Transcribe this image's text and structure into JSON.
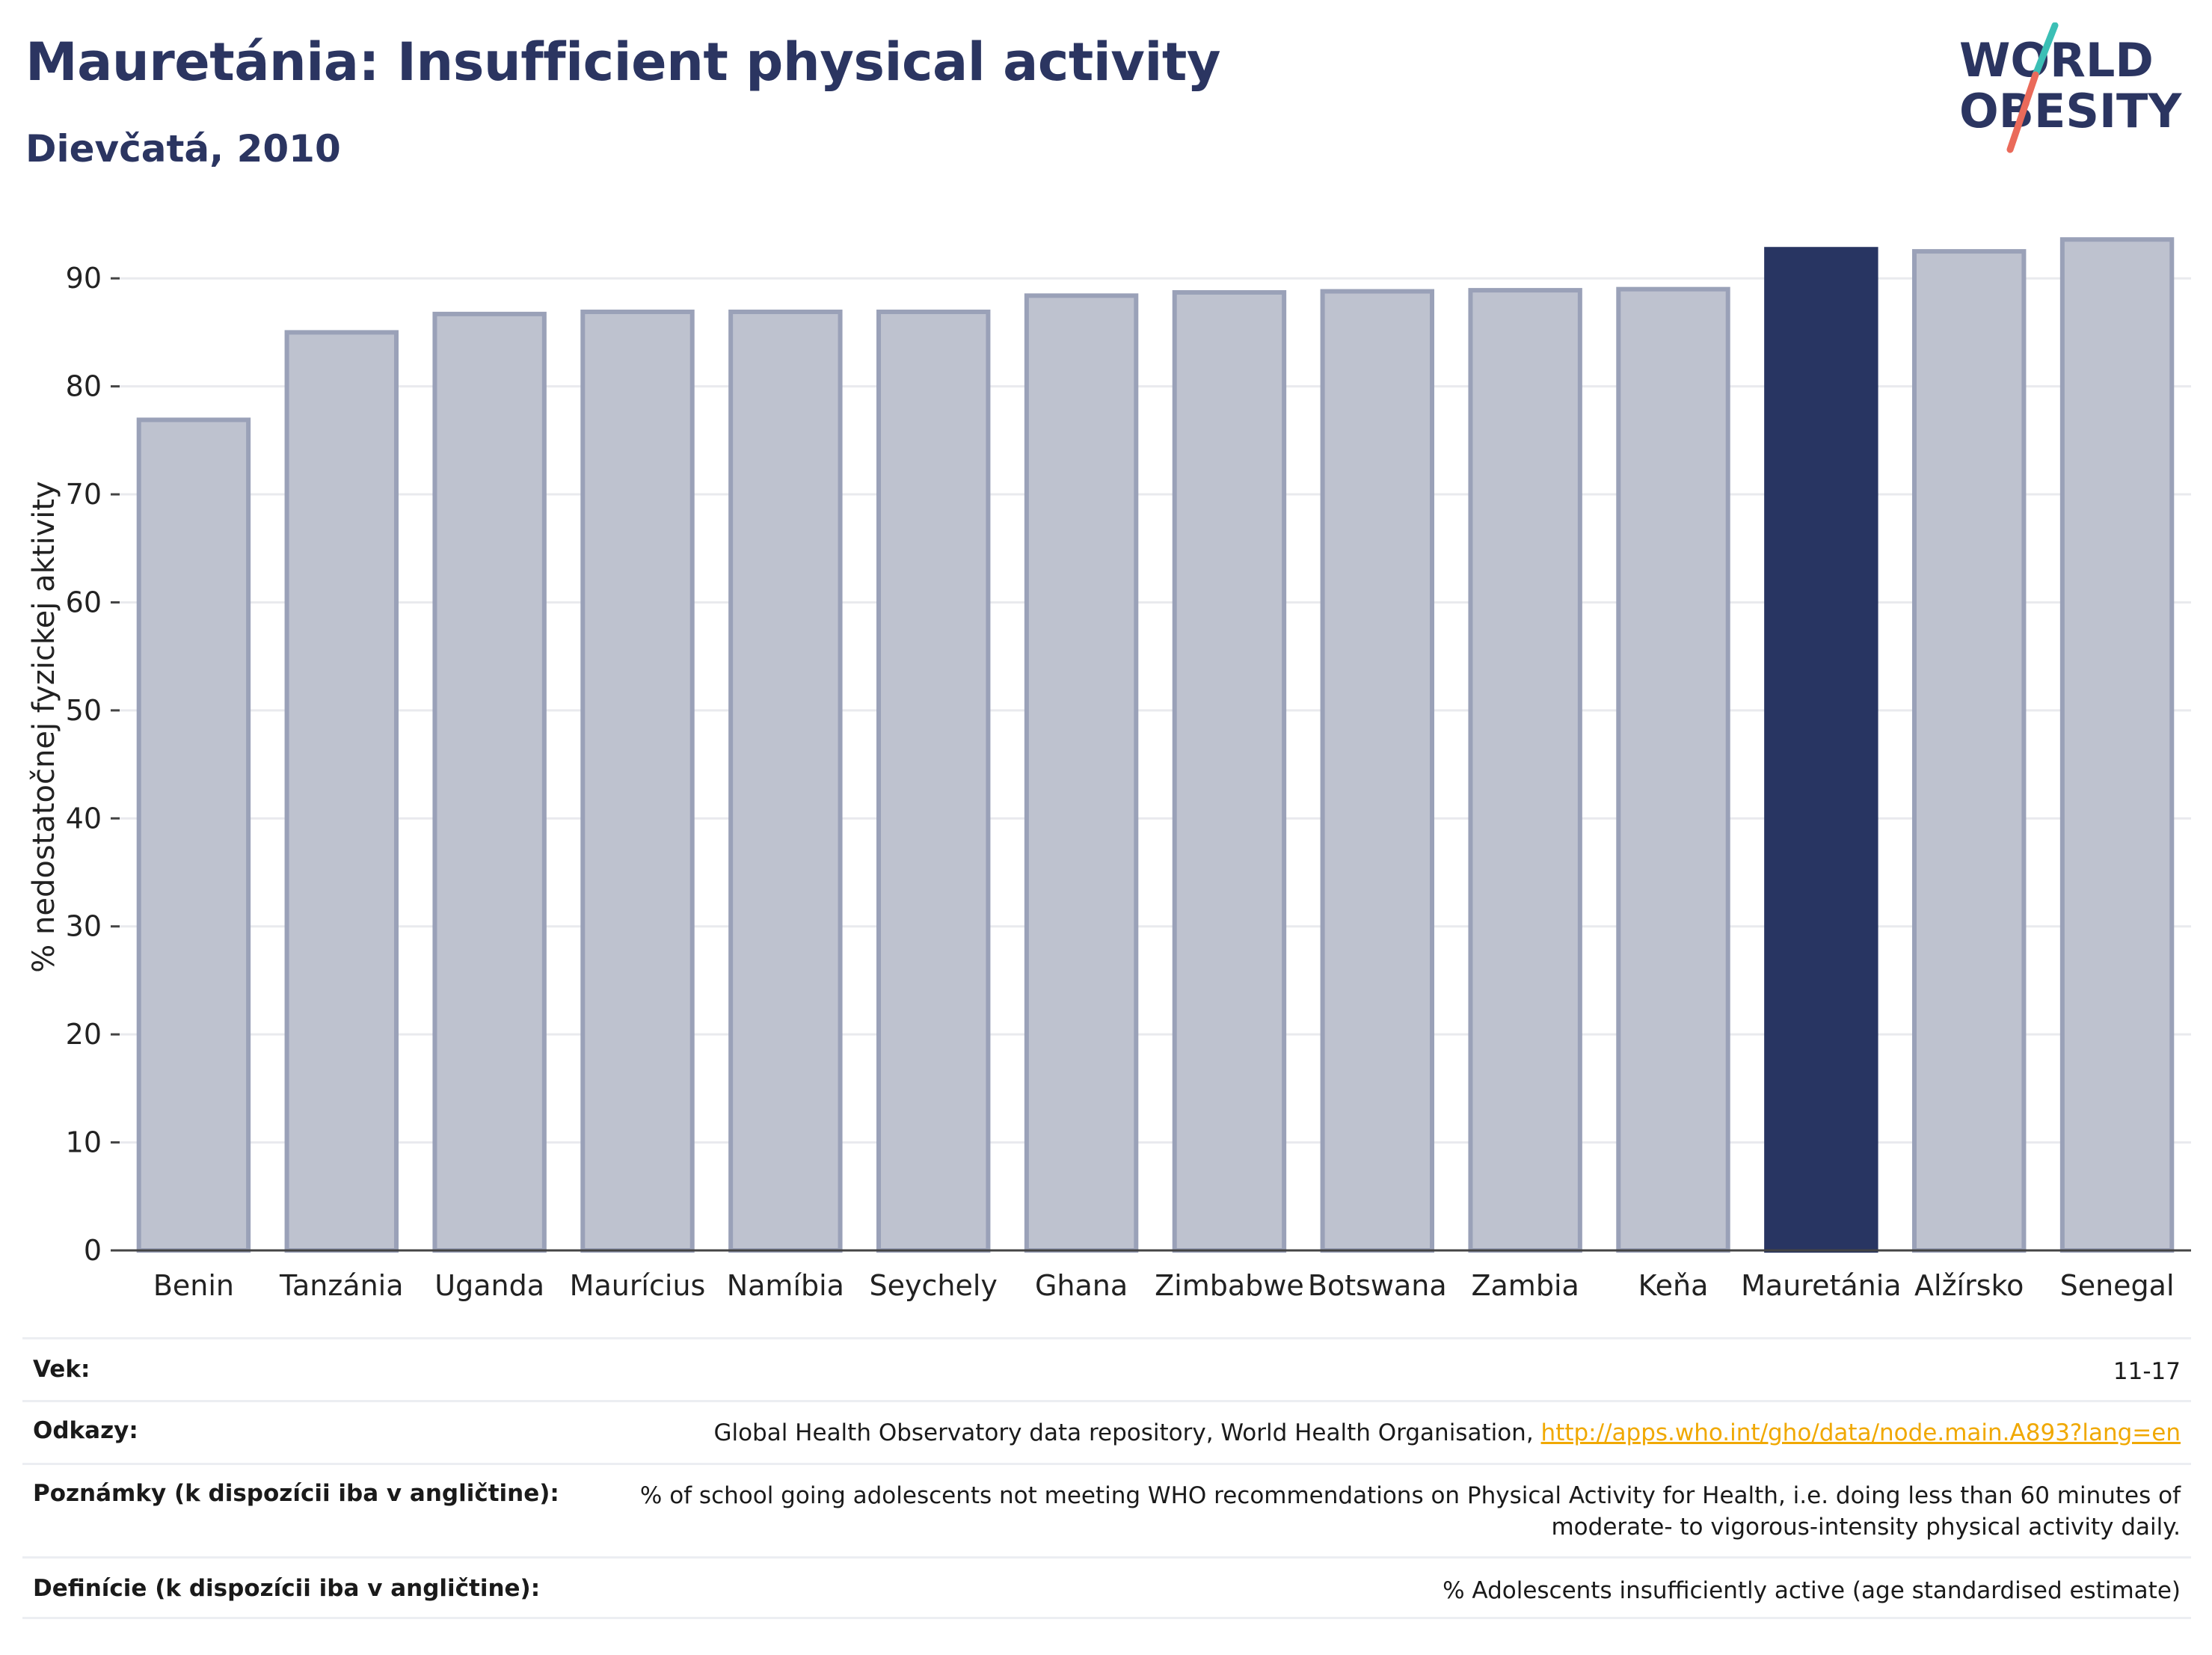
{
  "header": {
    "title": "Mauretánia: Insufficient physical activity",
    "subtitle": "Dievčatá, 2010"
  },
  "logo": {
    "line1": "WORLD",
    "line2": "OBESITY",
    "colors": {
      "text": "#2b3561",
      "slash_top": "#3bbfb5",
      "slash_bottom": "#ea6a5a"
    }
  },
  "chart_data": {
    "type": "bar",
    "title": "Mauretánia: Insufficient physical activity",
    "subtitle": "Dievčatá, 2010",
    "ylabel": "% nedostatočnej fyzickej aktivity",
    "xlabel": "",
    "categories": [
      "Benin",
      "Tanzánia",
      "Uganda",
      "Maurícius",
      "Namíbia",
      "Seychely",
      "Ghana",
      "Zimbabwe",
      "Botswana",
      "Zambia",
      "Keňa",
      "Mauretánia",
      "Alžírsko",
      "Senegal"
    ],
    "values": [
      76.9,
      85.0,
      86.7,
      86.9,
      86.9,
      86.9,
      88.4,
      88.7,
      88.8,
      88.9,
      89.0,
      92.7,
      92.5,
      93.6
    ],
    "highlight": "Mauretánia",
    "ylim": [
      0,
      95
    ],
    "yticks": [
      0,
      10,
      20,
      30,
      40,
      50,
      60,
      70,
      80,
      90
    ],
    "grid": true,
    "legend": "none",
    "colors": {
      "bar": "#bec2cf",
      "bar_edge": "#9aa1b8",
      "highlight": "#283562",
      "grid": "#e9eaee",
      "axis": "#444444"
    }
  },
  "footer": {
    "rows": [
      {
        "key": "Vek:",
        "value": "11-17"
      },
      {
        "key": "Odkazy:",
        "value": "Global Health Observatory data repository, World Health Organisation, ",
        "link": "http://apps.who.int/gho/data/node.main.A893?lang=en"
      },
      {
        "key": "Poznámky (k dispozícii iba v angličtine):",
        "value": "% of school going adolescents not meeting WHO recommendations on Physical Activity for Health, i.e. doing less than 60 minutes of moderate- to vigorous-intensity physical activity daily."
      },
      {
        "key": "Definície (k dispozícii iba v angličtine):",
        "value": "% Adolescents insufficiently active (age standardised estimate)"
      }
    ]
  }
}
